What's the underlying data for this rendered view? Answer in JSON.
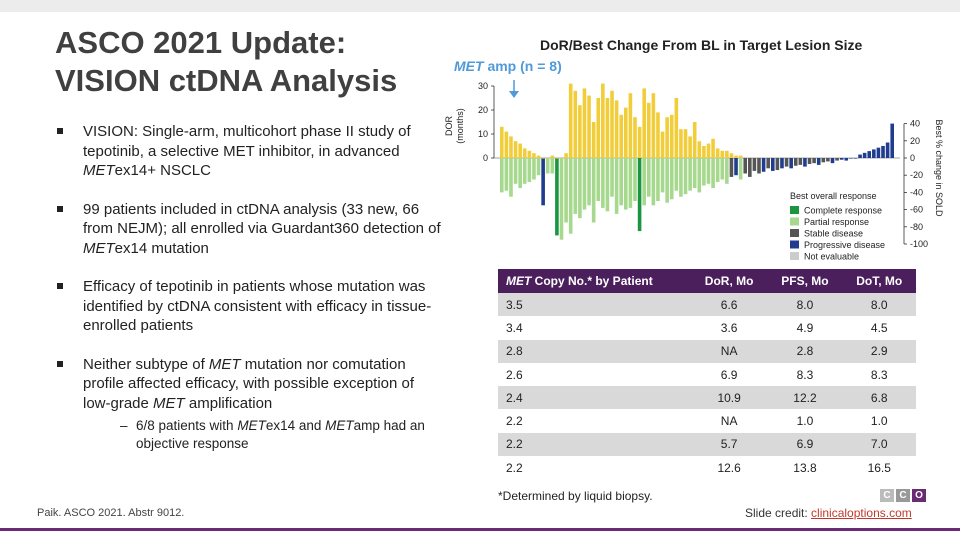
{
  "title": {
    "line1": "ASCO 2021 Update:",
    "line2": "VISION ctDNA Analysis"
  },
  "bullets": [
    [
      {
        "t": "VISION: Single-arm, multicohort phase II study of tepotinib, a selective MET inhibitor, in advanced "
      },
      {
        "t": "MET",
        "i": true
      },
      {
        "t": "ex14+ NSCLC"
      }
    ],
    [
      {
        "t": "99 patients included in ctDNA analysis (33 new, 66 from NEJM); all enrolled via Guardant360 detection of "
      },
      {
        "t": "MET",
        "i": true
      },
      {
        "t": "ex14 mutation"
      }
    ],
    [
      {
        "t": "Efficacy of tepotinib in patients whose mutation was identified by ctDNA consistent with efficacy in tissue-enrolled patients"
      }
    ],
    [
      {
        "t": "Neither subtype of "
      },
      {
        "t": "MET",
        "i": true
      },
      {
        "t": " mutation nor comutation profile affected efficacy, with possible exception of low-grade "
      },
      {
        "t": "MET",
        "i": true
      },
      {
        "t": " amplification"
      }
    ]
  ],
  "sub_bullet": {
    "dash": "–",
    "parts": [
      {
        "t": "6/8 patients with "
      },
      {
        "t": "MET",
        "i": true
      },
      {
        "t": "ex14 and "
      },
      {
        "t": "MET",
        "i": true
      },
      {
        "t": "amp had an objective response"
      }
    ]
  },
  "footer": {
    "citation": "Paik. ASCO 2021. Abstr 9012.",
    "credit_label": "Slide credit: ",
    "credit_link": "clinicaloptions.com",
    "logo_letters": [
      "C",
      "C",
      "O"
    ]
  },
  "chart_data": {
    "type": "bar",
    "title": "DoR/Best Change From BL in Target Lesion Size",
    "annotation": {
      "italic": "MET",
      "rest": " amp (n = 8)"
    },
    "left_axis": {
      "label_line1": "DOR",
      "label_line2": "(months)",
      "ticks": [
        0,
        10,
        20,
        30
      ],
      "range": [
        0,
        30
      ]
    },
    "right_axis": {
      "label": "Best % change in SOLD",
      "ticks": [
        "40",
        "20",
        "0",
        "-20",
        "-40",
        "-60",
        "-80",
        "-100"
      ],
      "range": [
        -100,
        40
      ]
    },
    "legend": {
      "title": "Best overall response",
      "items": [
        {
          "label": "Complete response",
          "color": "#1a9641"
        },
        {
          "label": "Partial response",
          "color": "#a6d88e"
        },
        {
          "label": "Stable disease",
          "color": "#555555"
        },
        {
          "label": "Progressive disease",
          "color": "#1f3c8f"
        },
        {
          "label": "Not evaluable",
          "color": "#cccccc"
        }
      ]
    },
    "series": [
      {
        "name": "DOR (months)",
        "color": "#f2cd3a",
        "values": [
          13,
          11,
          9,
          7,
          6,
          4,
          3,
          2,
          1,
          0,
          0,
          1,
          0,
          0,
          2,
          31,
          28,
          22,
          29,
          26,
          15,
          25,
          31,
          25,
          28,
          24,
          18,
          21,
          27,
          17,
          13,
          29,
          23,
          27,
          19,
          11,
          17,
          18,
          25,
          12,
          12,
          9,
          15,
          7,
          5,
          6,
          8,
          4,
          3,
          3,
          2,
          1,
          1
        ]
      },
      {
        "name": "Best % change in SOLD",
        "values": [
          -40,
          -38,
          -45,
          -30,
          -35,
          -30,
          -28,
          -25,
          -20,
          -55,
          -18,
          -18,
          -90,
          -95,
          -75,
          -88,
          -65,
          -70,
          -60,
          -55,
          -75,
          -50,
          -58,
          -62,
          -45,
          -65,
          -55,
          -60,
          -58,
          -50,
          -85,
          -55,
          -45,
          -55,
          -50,
          -40,
          -52,
          -48,
          -38,
          -45,
          -42,
          -38,
          -35,
          -40,
          -32,
          -30,
          -35,
          -28,
          -25,
          -30,
          -22,
          -20,
          -25,
          -18,
          -22,
          -15,
          -18,
          -16,
          -12,
          -15,
          -14,
          -12,
          -10,
          -12,
          -9,
          -8,
          -10,
          -7,
          -6,
          -8,
          -5,
          -4,
          -6,
          -3,
          -2,
          -3,
          0,
          0,
          4,
          6,
          8,
          10,
          12,
          14,
          18,
          40
        ],
        "colors": [
          "P",
          "P",
          "P",
          "P",
          "P",
          "P",
          "P",
          "P",
          "P",
          "D",
          "P",
          "P",
          "C",
          "P",
          "P",
          "P",
          "P",
          "P",
          "P",
          "P",
          "P",
          "P",
          "P",
          "P",
          "P",
          "P",
          "P",
          "P",
          "P",
          "P",
          "C",
          "P",
          "P",
          "P",
          "P",
          "P",
          "P",
          "P",
          "P",
          "P",
          "P",
          "P",
          "P",
          "P",
          "P",
          "P",
          "P",
          "P",
          "P",
          "P",
          "S",
          "D",
          "P",
          "S",
          "S",
          "S",
          "S",
          "D",
          "S",
          "D",
          "S",
          "D",
          "S",
          "D",
          "S",
          "S",
          "D",
          "S",
          "S",
          "D",
          "S",
          "S",
          "D",
          "S",
          "D",
          "D",
          "D",
          "D",
          "D",
          "D",
          "D",
          "D",
          "D",
          "D",
          "D",
          "D"
        ]
      }
    ]
  },
  "table": {
    "headers": [
      {
        "italic": "MET",
        "rest": " Copy No.* by Patient"
      },
      {
        "italic": "",
        "rest": "DoR, Mo"
      },
      {
        "italic": "",
        "rest": "PFS, Mo"
      },
      {
        "italic": "",
        "rest": "DoT, Mo"
      }
    ],
    "rows": [
      [
        "3.5",
        "6.6",
        "8.0",
        "8.0"
      ],
      [
        "3.4",
        "3.6",
        "4.9",
        "4.5"
      ],
      [
        "2.8",
        "NA",
        "2.8",
        "2.9"
      ],
      [
        "2.6",
        "6.9",
        "8.3",
        "8.3"
      ],
      [
        "2.4",
        "10.9",
        "12.2",
        "6.8"
      ],
      [
        "2.2",
        "NA",
        "1.0",
        "1.0"
      ],
      [
        "2.2",
        "5.7",
        "6.9",
        "7.0"
      ],
      [
        "2.2",
        "12.6",
        "13.8",
        "16.5"
      ]
    ],
    "note": "*Determined by liquid biopsy."
  }
}
